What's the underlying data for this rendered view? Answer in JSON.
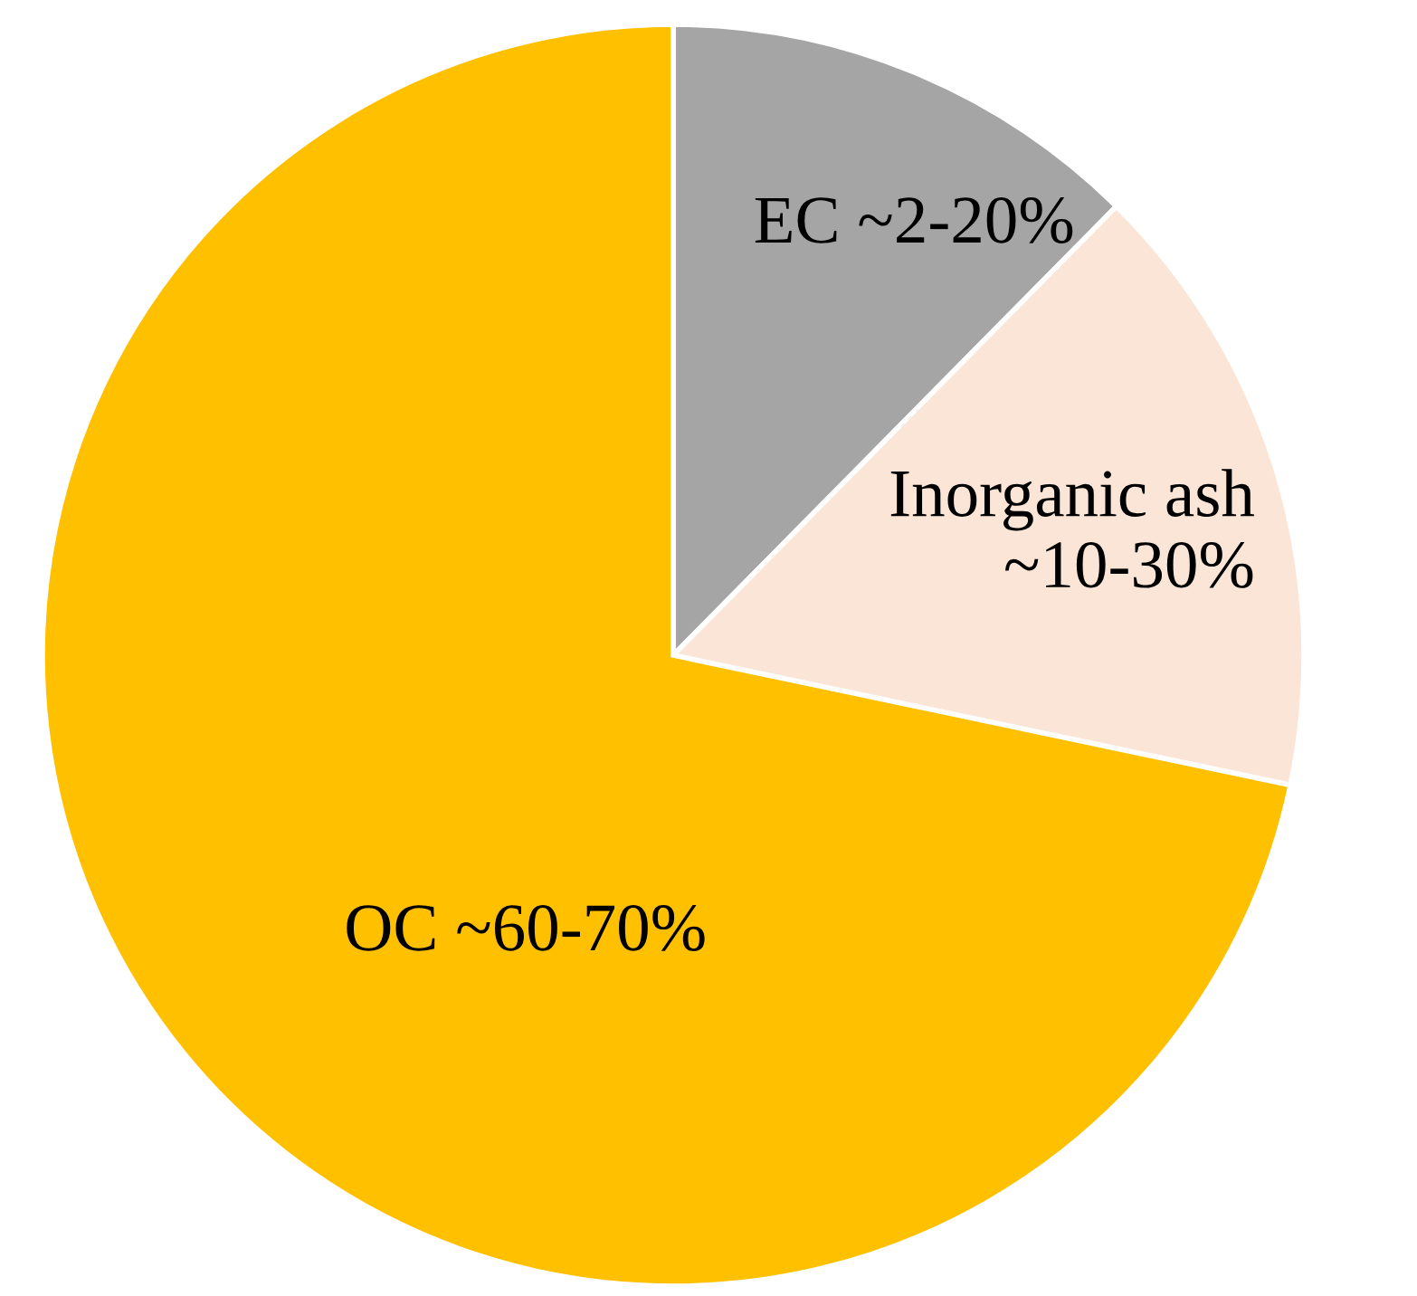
{
  "chart_data": {
    "type": "pie",
    "categories": [
      "EC ~2-20%",
      "Inorganic ash\n~10-30%",
      "OC ~60-70%"
    ],
    "values": [
      12.4,
      15.9,
      71.7
    ],
    "colors": [
      "#a5a5a5",
      "#fbe5d6",
      "#ffc000"
    ],
    "legend": false
  }
}
